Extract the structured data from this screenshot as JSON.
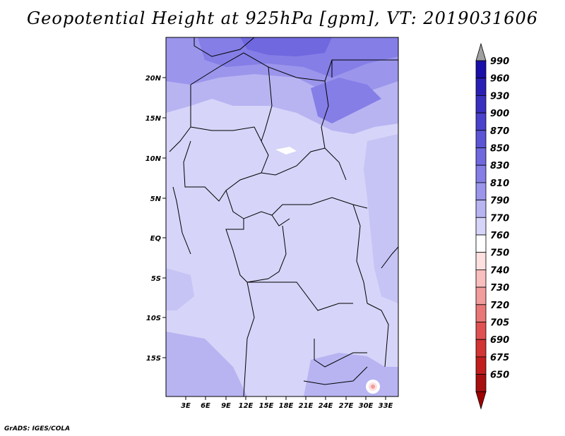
{
  "title": "Geopotential Height at 925hPa [gpm], VT: 2019031606",
  "credit": "GrADS: IGES/COLA",
  "map": {
    "lat_ticks": [
      "20N",
      "15N",
      "10N",
      "5N",
      "EQ",
      "5S",
      "10S",
      "15S"
    ],
    "lon_ticks": [
      "3E",
      "6E",
      "9E",
      "12E",
      "15E",
      "18E",
      "21E",
      "24E",
      "27E",
      "30E",
      "33E"
    ]
  },
  "colorbar": {
    "levels": [
      "990",
      "960",
      "930",
      "900",
      "870",
      "850",
      "830",
      "810",
      "790",
      "770",
      "760",
      "750",
      "740",
      "730",
      "720",
      "705",
      "690",
      "675",
      "650"
    ],
    "colors": [
      "#1a0fa8",
      "#2a1fb5",
      "#3a30c0",
      "#4a42cc",
      "#5c55d6",
      "#7068df",
      "#857ee6",
      "#9b95ec",
      "#b8b4f2",
      "#d6d4f8",
      "#ffffff",
      "#fde0e0",
      "#f9bfbf",
      "#f29c9c",
      "#ea7777",
      "#e05252",
      "#d33434",
      "#c21e1e",
      "#a80f0f"
    ],
    "top_color": "#a0a0a0",
    "bottom_color": "#a00000"
  }
}
